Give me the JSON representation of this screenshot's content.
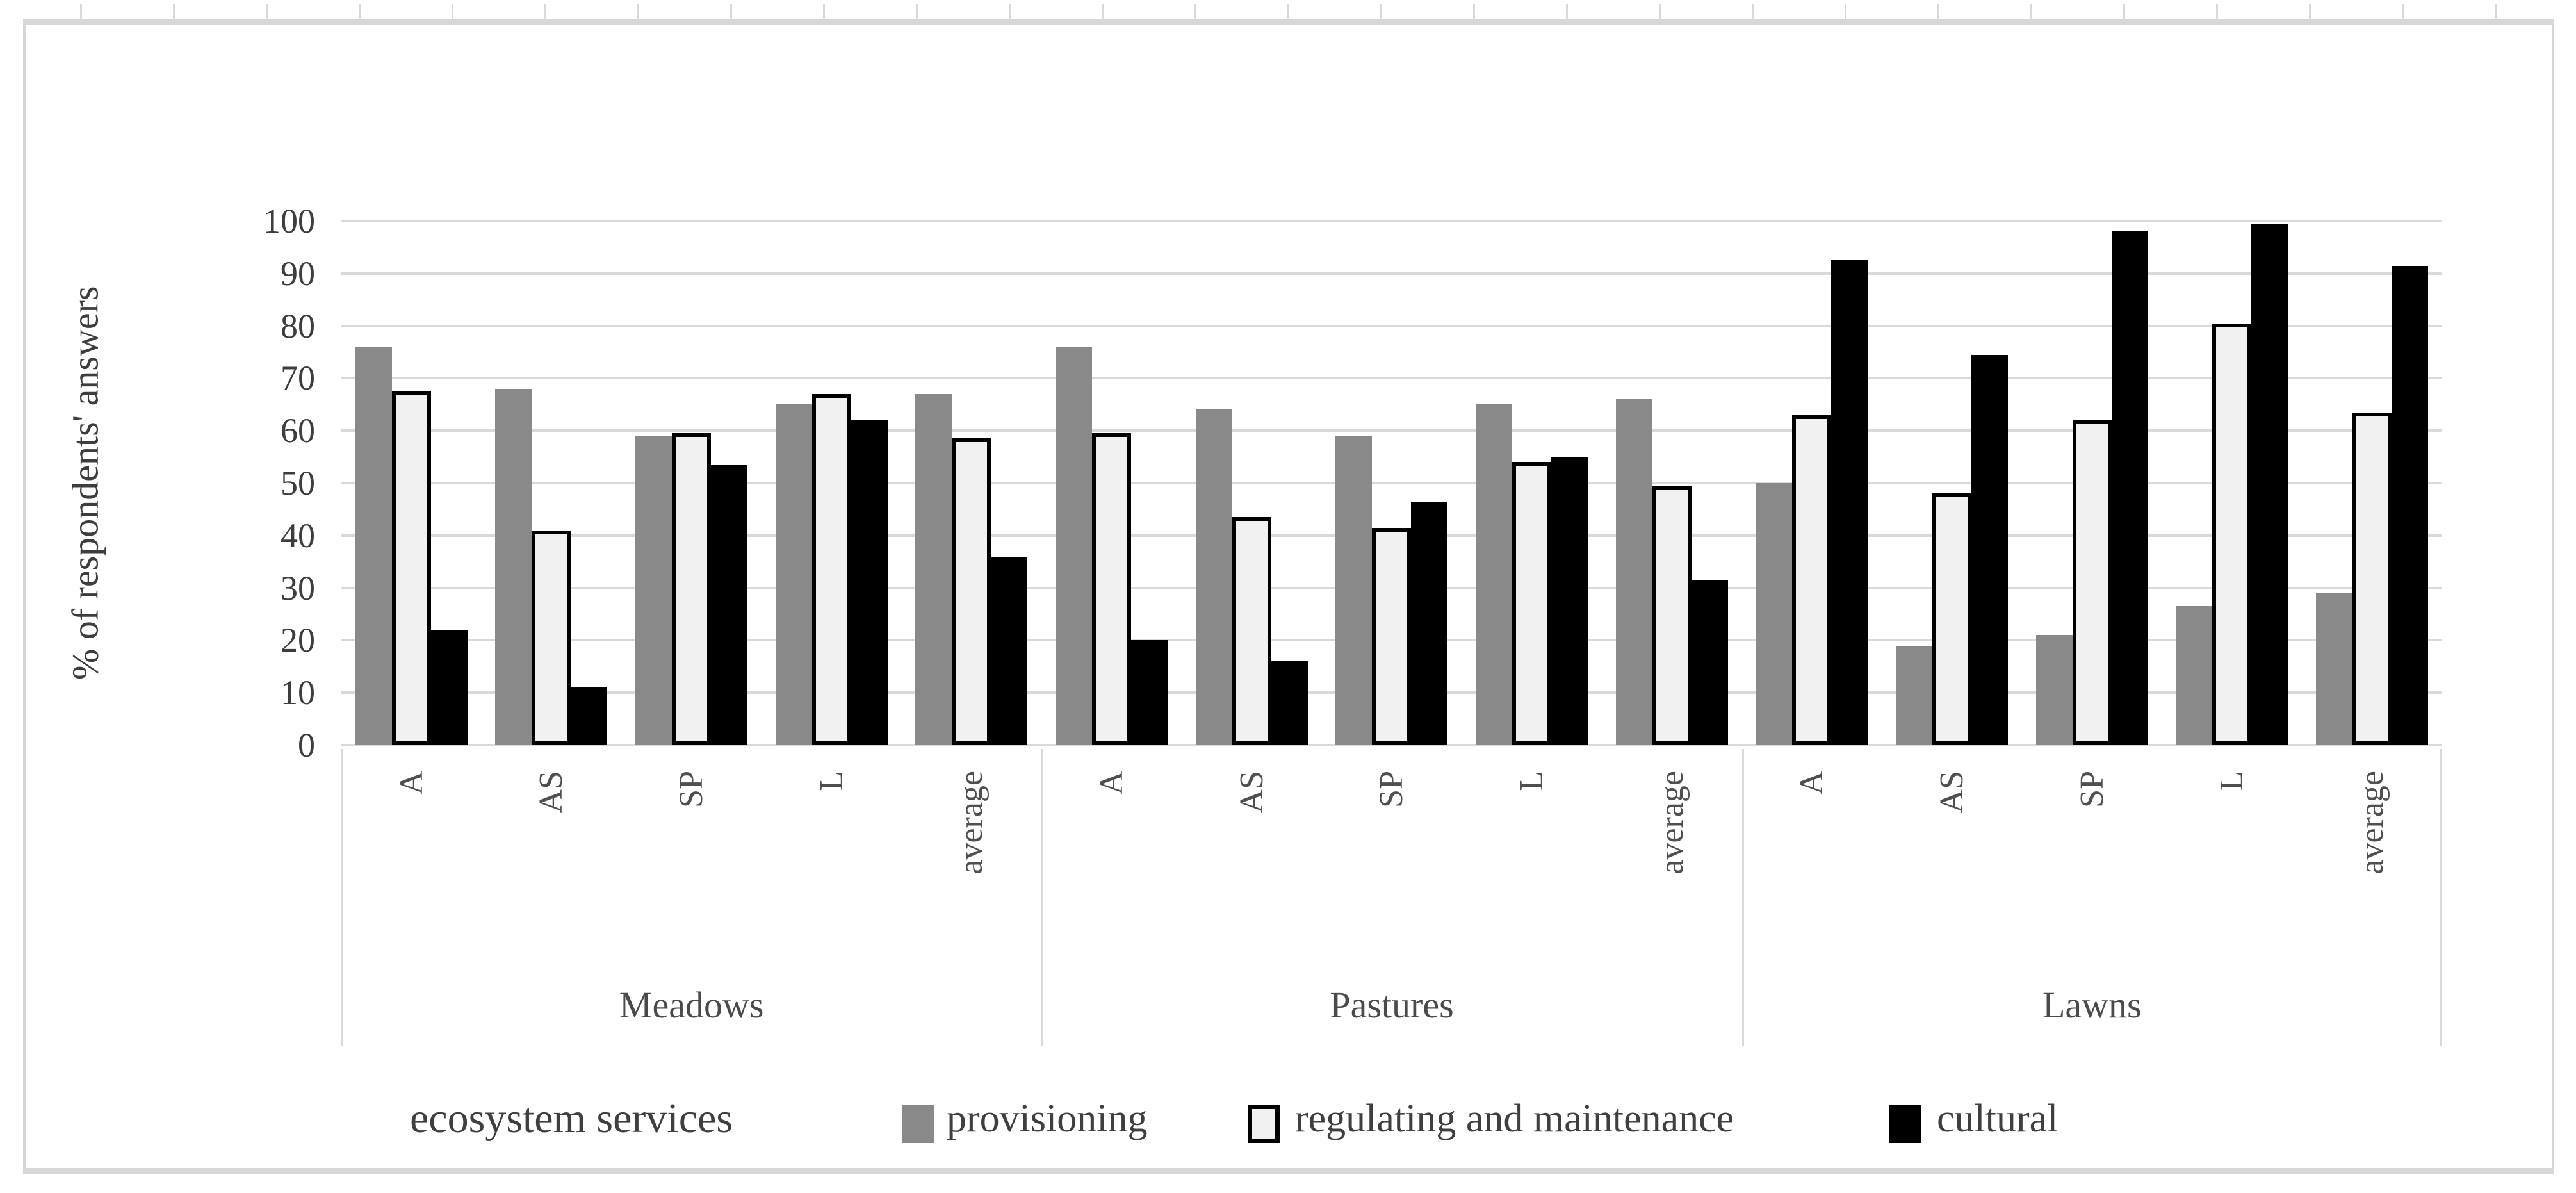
{
  "y_axis": {
    "title": "% of respondents' answers",
    "tick_values": [
      0,
      10,
      20,
      30,
      40,
      50,
      60,
      70,
      80,
      90,
      100
    ],
    "min": 0,
    "max": 100
  },
  "legend": {
    "title": "ecosystem services",
    "items": [
      {
        "label": "provisioning",
        "fill": "#898989",
        "outline": "none"
      },
      {
        "label": "regulating and maintenance",
        "fill": "#f1f1f1",
        "outline": "#000000"
      },
      {
        "label": "cultural",
        "fill": "#000000",
        "outline": "none"
      }
    ]
  },
  "colors": {
    "provisioning": "#898989",
    "regulating_fill": "#f1f1f1",
    "regulating_outline": "#000000",
    "cultural": "#000000",
    "gridline": "#d9d9d9",
    "frame_border": "#d7d7d7",
    "axis_text": "#3d3d3d",
    "category_text": "#4f4f4f",
    "legend_text": "#3f3f3f"
  },
  "chart_data": {
    "type": "bar",
    "title": "",
    "xlabel": "",
    "ylabel": "% of respondents' answers",
    "ylim": [
      0,
      100
    ],
    "grid": true,
    "legend_position": "bottom",
    "groups": [
      "Meadows",
      "Pastures",
      "Lawns"
    ],
    "categories": [
      "A",
      "AS",
      "SP",
      "L",
      "average"
    ],
    "series": [
      {
        "name": "provisioning",
        "color": "#898989",
        "values": [
          [
            76,
            68,
            59,
            65,
            67
          ],
          [
            76,
            64,
            59,
            65,
            66
          ],
          [
            50,
            19,
            21,
            26.5,
            29
          ]
        ]
      },
      {
        "name": "regulating and maintenance",
        "color": "#f1f1f1",
        "outline": "#000000",
        "values": [
          [
            67.5,
            41,
            59.5,
            67,
            58.5
          ],
          [
            59.5,
            43.5,
            41.5,
            54,
            49.5
          ],
          [
            63,
            48,
            62,
            80.5,
            63.5
          ]
        ]
      },
      {
        "name": "cultural",
        "color": "#000000",
        "values": [
          [
            22,
            11,
            53.5,
            62,
            36
          ],
          [
            20,
            16,
            46.5,
            55,
            31.5
          ],
          [
            92.5,
            74.5,
            98,
            99.5,
            91.5
          ]
        ]
      }
    ]
  }
}
